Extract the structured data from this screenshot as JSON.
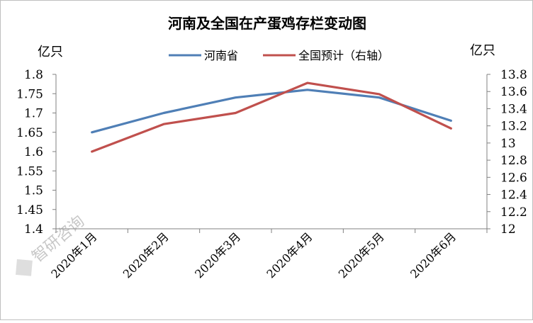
{
  "chart_data": {
    "type": "line",
    "title": "河南及全国在产蛋鸡存栏变动图",
    "y_left_unit": "亿只",
    "y_right_unit": "亿只",
    "categories": [
      "2020年1月",
      "2020年2月",
      "2020年3月",
      "2020年4月",
      "2020年5月",
      "2020年6月"
    ],
    "y_left_ticks": [
      "1.8",
      "1.75",
      "1.7",
      "1.65",
      "1.6",
      "1.55",
      "1.5",
      "1.45",
      "1.4"
    ],
    "y_right_ticks": [
      "13.8",
      "13.6",
      "13.4",
      "13.2",
      "13",
      "12.8",
      "12.6",
      "12.4",
      "12.2",
      "12"
    ],
    "ylim_left": [
      1.4,
      1.8
    ],
    "ylim_right": [
      12,
      13.8
    ],
    "grid": false,
    "legend_position": "top",
    "series": [
      {
        "name": "河南省",
        "axis": "left",
        "color": "#4f7fb6",
        "values": [
          1.65,
          1.7,
          1.74,
          1.76,
          1.74,
          1.68
        ]
      },
      {
        "name": "全国预计（右轴）",
        "axis": "right",
        "color": "#c0504d",
        "values": [
          12.9,
          13.22,
          13.35,
          13.7,
          13.57,
          13.17
        ]
      }
    ]
  },
  "watermark": "智研咨询"
}
